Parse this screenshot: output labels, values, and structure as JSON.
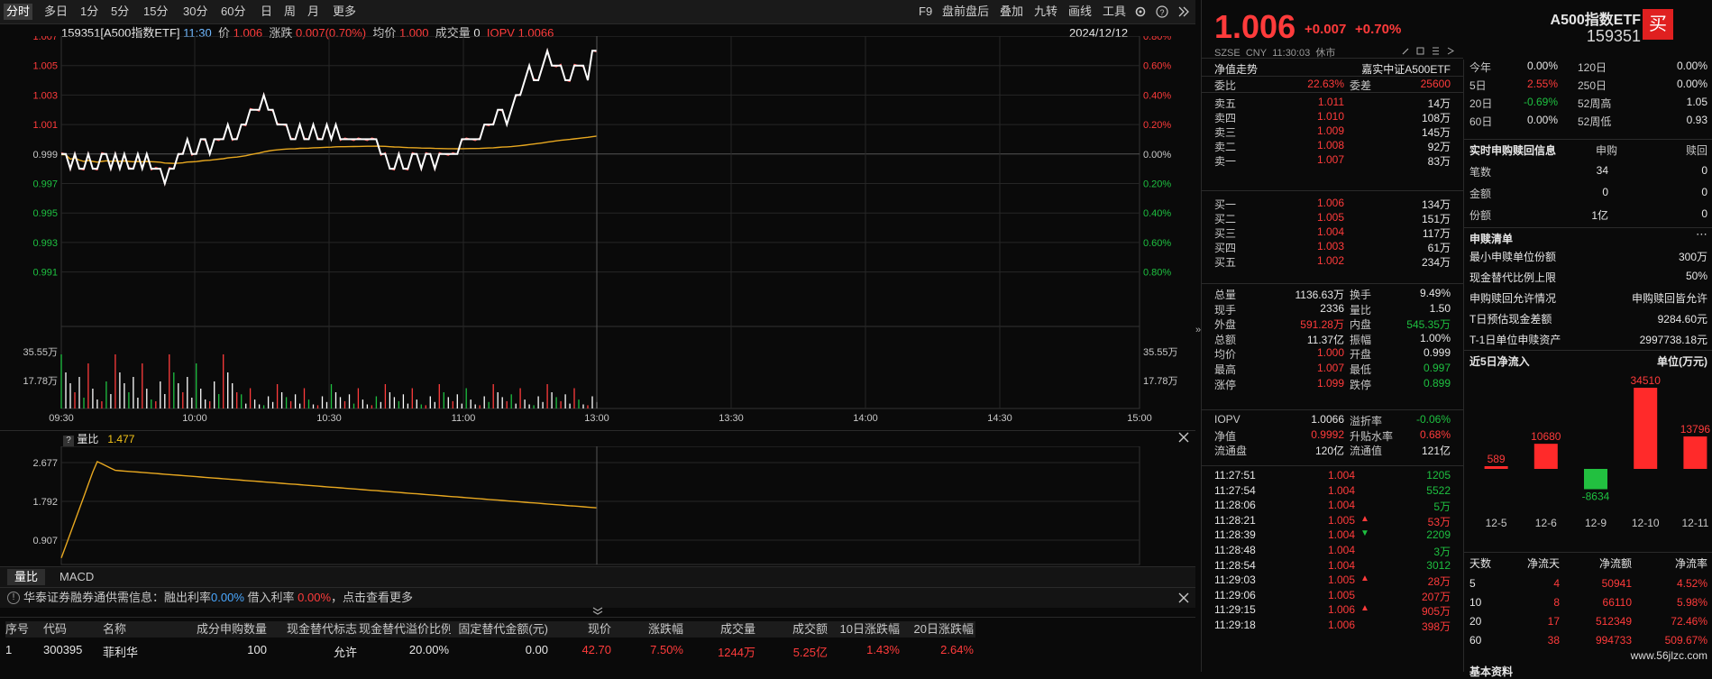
{
  "toolbar": {
    "periods": [
      "分时",
      "多日",
      "1分",
      "5分",
      "15分",
      "30分",
      "60分",
      "日",
      "周",
      "月",
      "更多"
    ],
    "tools": [
      "F9",
      "盘前盘后",
      "叠加",
      "九转",
      "画线",
      "工具"
    ]
  },
  "header": {
    "code_name": "159351[A500指数ETF]",
    "time": "11:30",
    "price_label": "价",
    "price": "1.006",
    "change_label": "涨跌",
    "change": "0.007(0.70%)",
    "avg_label": "均价",
    "avg": "1.000",
    "volume_label": "成交量",
    "volume": "0",
    "iopv_label": "IOPV",
    "iopv": "1.0066",
    "date": "2024/12/12"
  },
  "price_axis": {
    "left": [
      "1.007",
      "1.005",
      "1.003",
      "1.001",
      "0.999",
      "0.997",
      "0.995",
      "0.993",
      "0.991"
    ],
    "right": [
      "0.80%",
      "0.60%",
      "0.40%",
      "0.20%",
      "0.00%",
      "0.20%",
      "0.40%",
      "0.60%",
      "0.80%"
    ]
  },
  "volume_axis": [
    "35.55万",
    "17.78万"
  ],
  "time_axis": [
    "09:30",
    "10:00",
    "10:30",
    "11:00",
    "13:00",
    "13:30",
    "14:00",
    "14:30",
    "15:00"
  ],
  "indicator": {
    "name": "量比",
    "value": "1.477",
    "axis": [
      "2.677",
      "1.792",
      "0.907"
    ]
  },
  "subtabs": [
    "量比",
    "MACD"
  ],
  "notice": {
    "text1": "华泰证券融券通供需信息：融出利率",
    "rate1": "0.00%",
    "text2": "借入利率",
    "rate2": "0.00%",
    "text3": "，点击查看更多"
  },
  "table": {
    "headers": [
      "序号",
      "代码",
      "名称",
      "成分申购数量",
      "现金替代标志",
      "现金替代溢价比例",
      "固定替代金额(元)",
      "现价",
      "涨跌幅",
      "成交量",
      "成交额",
      "10日涨跌幅",
      "20日涨跌幅"
    ],
    "rows": [
      [
        "1",
        "300395",
        "菲利华",
        "100",
        "允许",
        "20.00%",
        "0.00",
        "42.70",
        "7.50%",
        "1244万",
        "5.25亿",
        "1.43%",
        "2.64%"
      ]
    ]
  },
  "quote": {
    "price": "1.006",
    "change": "+0.007",
    "pct": "+0.70%",
    "name": "A500指数ETF",
    "code": "159351",
    "buy_btn": "买",
    "market": "SZSE",
    "currency": "CNY",
    "time": "11:30:03",
    "status": "休市"
  },
  "nav_row": {
    "label": "净值走势",
    "fund": "嘉实中证A500ETF"
  },
  "weibi": {
    "label1": "委比",
    "v1": "22.63%",
    "label2": "委差",
    "v2": "25600"
  },
  "asks": [
    {
      "label": "卖五",
      "price": "1.011",
      "vol": "14万"
    },
    {
      "label": "卖四",
      "price": "1.010",
      "vol": "108万"
    },
    {
      "label": "卖三",
      "price": "1.009",
      "vol": "145万"
    },
    {
      "label": "卖二",
      "price": "1.008",
      "vol": "92万"
    },
    {
      "label": "卖一",
      "price": "1.007",
      "vol": "83万"
    }
  ],
  "bids": [
    {
      "label": "买一",
      "price": "1.006",
      "vol": "134万"
    },
    {
      "label": "买二",
      "price": "1.005",
      "vol": "151万"
    },
    {
      "label": "买三",
      "price": "1.004",
      "vol": "117万"
    },
    {
      "label": "买四",
      "price": "1.003",
      "vol": "61万"
    },
    {
      "label": "买五",
      "price": "1.002",
      "vol": "234万"
    }
  ],
  "stats": [
    {
      "l1": "总量",
      "v1": "1136.63万",
      "c1": "white",
      "l2": "换手",
      "v2": "9.49%",
      "c2": "white"
    },
    {
      "l1": "现手",
      "v1": "2336",
      "c1": "white",
      "l2": "量比",
      "v2": "1.50",
      "c2": "white"
    },
    {
      "l1": "外盘",
      "v1": "591.28万",
      "c1": "red",
      "l2": "内盘",
      "v2": "545.35万",
      "c2": "green"
    },
    {
      "l1": "总额",
      "v1": "11.37亿",
      "c1": "white",
      "l2": "振幅",
      "v2": "1.00%",
      "c2": "white"
    },
    {
      "l1": "均价",
      "v1": "1.000",
      "c1": "red",
      "l2": "开盘",
      "v2": "0.999",
      "c2": "white"
    },
    {
      "l1": "最高",
      "v1": "1.007",
      "c1": "red",
      "l2": "最低",
      "v2": "0.997",
      "c2": "green"
    },
    {
      "l1": "涨停",
      "v1": "1.099",
      "c1": "red",
      "l2": "跌停",
      "v2": "0.899",
      "c2": "green"
    }
  ],
  "iopv_stats": [
    {
      "l1": "IOPV",
      "v1": "1.0066",
      "c1": "white",
      "l2": "溢折率",
      "v2": "-0.06%",
      "c2": "green"
    },
    {
      "l1": "净值",
      "v1": "0.9992",
      "c1": "red",
      "l2": "升贴水率",
      "v2": "0.68%",
      "c2": "red"
    },
    {
      "l1": "流通盘",
      "v1": "120亿",
      "c1": "white",
      "l2": "流通值",
      "v2": "121亿",
      "c2": "white"
    }
  ],
  "ticks": [
    {
      "t": "11:27:51",
      "p": "1.004",
      "v": "1205",
      "vc": "green",
      "arrow": ""
    },
    {
      "t": "11:27:54",
      "p": "1.004",
      "v": "5522",
      "vc": "green",
      "arrow": ""
    },
    {
      "t": "11:28:06",
      "p": "1.004",
      "v": "5万",
      "vc": "green",
      "arrow": ""
    },
    {
      "t": "11:28:21",
      "p": "1.005",
      "v": "53万",
      "vc": "red",
      "arrow": "up"
    },
    {
      "t": "11:28:39",
      "p": "1.004",
      "v": "2209",
      "vc": "green",
      "arrow": "down"
    },
    {
      "t": "11:28:48",
      "p": "1.004",
      "v": "3万",
      "vc": "green",
      "arrow": ""
    },
    {
      "t": "11:28:54",
      "p": "1.004",
      "v": "3012",
      "vc": "green",
      "arrow": ""
    },
    {
      "t": "11:29:03",
      "p": "1.005",
      "v": "28万",
      "vc": "red",
      "arrow": "up"
    },
    {
      "t": "11:29:06",
      "p": "1.005",
      "v": "207万",
      "vc": "red",
      "arrow": ""
    },
    {
      "t": "11:29:15",
      "p": "1.006",
      "v": "905万",
      "vc": "red",
      "arrow": "up"
    },
    {
      "t": "11:29:18",
      "p": "1.006",
      "v": "398万",
      "vc": "red",
      "arrow": ""
    }
  ],
  "perf": [
    {
      "l1": "今年",
      "v1": "0.00%",
      "c1": "white",
      "l2": "120日",
      "v2": "0.00%",
      "c2": "white"
    },
    {
      "l1": "5日",
      "v1": "2.55%",
      "c1": "red",
      "l2": "250日",
      "v2": "0.00%",
      "c2": "white"
    },
    {
      "l1": "20日",
      "v1": "-0.69%",
      "c1": "green",
      "l2": "52周高",
      "v2": "1.05",
      "c2": "white"
    },
    {
      "l1": "60日",
      "v1": "0.00%",
      "c1": "white",
      "l2": "52周低",
      "v2": "0.93",
      "c2": "white"
    }
  ],
  "creation": {
    "title": "实时申购赎回信息",
    "col1": "申购",
    "col2": "赎回",
    "rows": [
      {
        "l": "笔数",
        "a": "34",
        "b": "0"
      },
      {
        "l": "金额",
        "a": "0",
        "b": "0"
      },
      {
        "l": "份额",
        "a": "1亿",
        "b": "0"
      }
    ]
  },
  "pcf": {
    "title": "申赎清单",
    "rows": [
      {
        "l": "最小申赎单位份额",
        "v": "300万"
      },
      {
        "l": "现金替代比例上限",
        "v": "50%"
      },
      {
        "l": "申购赎回允许情况",
        "v": "申购赎回皆允许"
      },
      {
        "l": "T日预估现金差额",
        "v": "9284.60元"
      },
      {
        "l": "T-1日单位申赎资产",
        "v": "2997738.18元"
      }
    ]
  },
  "flow": {
    "title": "近5日净流入",
    "unit": "单位(万元)",
    "chart_data": {
      "type": "bar",
      "categories": [
        "12-5",
        "12-6",
        "12-9",
        "12-10",
        "12-11"
      ],
      "values": [
        589,
        10680,
        -8634,
        34510,
        13796
      ]
    }
  },
  "flow_table": {
    "headers": [
      "天数",
      "净流天",
      "净流额",
      "净流率"
    ],
    "rows": [
      [
        "5",
        "4",
        "50941",
        "4.52%"
      ],
      [
        "10",
        "8",
        "66110",
        "5.98%"
      ],
      [
        "20",
        "17",
        "512349",
        "72.46%"
      ],
      [
        "60",
        "38",
        "994733",
        "509.67%"
      ]
    ]
  },
  "footer_title": "基本资料",
  "watermark": "www.56jlzc.com",
  "colors": {
    "up": "#ff3b3b",
    "down": "#1ec040",
    "avg_line": "#e8a820",
    "accent_buy": "#e02020"
  }
}
